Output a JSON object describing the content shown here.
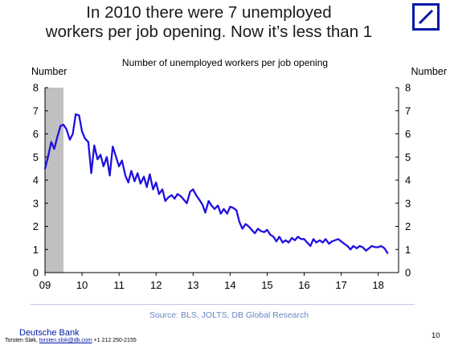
{
  "title_line1": "In 2010 there were 7 unemployed",
  "title_line2": "workers per job opening. Now it’s less than 1",
  "logo": {
    "icon": "deutsche-bank-logo-icon",
    "color": "#0018a8"
  },
  "footer": {
    "source": "Source: BLS, JOLTS, DB Global Research",
    "brand": "Deutsche Bank",
    "contact_name": "Torsten Sløk, ",
    "contact_email": "torsten.slok@db.com",
    "contact_phone": " +1 212 250-2155",
    "page_number": "10"
  },
  "chart_data": {
    "type": "line",
    "title": "Number of unemployed workers per job opening",
    "ylabel_left": "Number",
    "ylabel_right": "Number",
    "ylim": [
      0,
      8
    ],
    "yticks": [
      "0",
      "1",
      "2",
      "3",
      "4",
      "5",
      "6",
      "7",
      "8"
    ],
    "xlim": [
      2009.0,
      2018.55
    ],
    "xticks": [
      {
        "value": 2009,
        "label": "09"
      },
      {
        "value": 2010,
        "label": "10"
      },
      {
        "value": 2011,
        "label": "11"
      },
      {
        "value": 2012,
        "label": "12"
      },
      {
        "value": 2013,
        "label": "13"
      },
      {
        "value": 2014,
        "label": "14"
      },
      {
        "value": 2015,
        "label": "15"
      },
      {
        "value": 2016,
        "label": "16"
      },
      {
        "value": 2017,
        "label": "17"
      },
      {
        "value": 2018,
        "label": "18"
      }
    ],
    "recession_shading": {
      "start": 2009.0,
      "end": 2009.5,
      "color": "#c0c0c0"
    },
    "series": [
      {
        "color": "#1f10e0",
        "points": [
          [
            2009.0,
            4.5
          ],
          [
            2009.08,
            5.0
          ],
          [
            2009.17,
            5.65
          ],
          [
            2009.25,
            5.35
          ],
          [
            2009.33,
            5.85
          ],
          [
            2009.42,
            6.35
          ],
          [
            2009.5,
            6.4
          ],
          [
            2009.58,
            6.2
          ],
          [
            2009.67,
            5.75
          ],
          [
            2009.75,
            6.0
          ],
          [
            2009.83,
            6.85
          ],
          [
            2009.92,
            6.8
          ],
          [
            2010.0,
            6.1
          ],
          [
            2010.08,
            5.8
          ],
          [
            2010.17,
            5.65
          ],
          [
            2010.25,
            4.3
          ],
          [
            2010.33,
            5.5
          ],
          [
            2010.42,
            4.9
          ],
          [
            2010.5,
            5.1
          ],
          [
            2010.58,
            4.6
          ],
          [
            2010.67,
            5.0
          ],
          [
            2010.75,
            4.2
          ],
          [
            2010.83,
            5.45
          ],
          [
            2010.92,
            5.0
          ],
          [
            2011.0,
            4.6
          ],
          [
            2011.08,
            4.85
          ],
          [
            2011.17,
            4.2
          ],
          [
            2011.25,
            3.9
          ],
          [
            2011.33,
            4.4
          ],
          [
            2011.42,
            3.95
          ],
          [
            2011.5,
            4.3
          ],
          [
            2011.58,
            3.85
          ],
          [
            2011.67,
            4.15
          ],
          [
            2011.75,
            3.7
          ],
          [
            2011.83,
            4.25
          ],
          [
            2011.92,
            3.6
          ],
          [
            2012.0,
            3.9
          ],
          [
            2012.08,
            3.4
          ],
          [
            2012.17,
            3.6
          ],
          [
            2012.25,
            3.1
          ],
          [
            2012.33,
            3.25
          ],
          [
            2012.42,
            3.35
          ],
          [
            2012.5,
            3.2
          ],
          [
            2012.58,
            3.4
          ],
          [
            2012.67,
            3.3
          ],
          [
            2012.75,
            3.15
          ],
          [
            2012.83,
            3.0
          ],
          [
            2012.92,
            3.5
          ],
          [
            2013.0,
            3.6
          ],
          [
            2013.08,
            3.35
          ],
          [
            2013.17,
            3.15
          ],
          [
            2013.25,
            2.95
          ],
          [
            2013.33,
            2.6
          ],
          [
            2013.42,
            3.1
          ],
          [
            2013.5,
            2.9
          ],
          [
            2013.58,
            2.75
          ],
          [
            2013.67,
            2.9
          ],
          [
            2013.75,
            2.55
          ],
          [
            2013.83,
            2.75
          ],
          [
            2013.92,
            2.55
          ],
          [
            2014.0,
            2.85
          ],
          [
            2014.08,
            2.8
          ],
          [
            2014.17,
            2.7
          ],
          [
            2014.25,
            2.2
          ],
          [
            2014.33,
            1.9
          ],
          [
            2014.42,
            2.1
          ],
          [
            2014.5,
            2.0
          ],
          [
            2014.58,
            1.85
          ],
          [
            2014.67,
            1.7
          ],
          [
            2014.75,
            1.9
          ],
          [
            2014.83,
            1.8
          ],
          [
            2014.92,
            1.75
          ],
          [
            2015.0,
            1.85
          ],
          [
            2015.08,
            1.65
          ],
          [
            2015.17,
            1.55
          ],
          [
            2015.25,
            1.35
          ],
          [
            2015.33,
            1.55
          ],
          [
            2015.42,
            1.3
          ],
          [
            2015.5,
            1.4
          ],
          [
            2015.58,
            1.3
          ],
          [
            2015.67,
            1.5
          ],
          [
            2015.75,
            1.4
          ],
          [
            2015.83,
            1.55
          ],
          [
            2015.92,
            1.45
          ],
          [
            2016.0,
            1.45
          ],
          [
            2016.08,
            1.3
          ],
          [
            2016.17,
            1.15
          ],
          [
            2016.25,
            1.45
          ],
          [
            2016.33,
            1.3
          ],
          [
            2016.42,
            1.4
          ],
          [
            2016.5,
            1.3
          ],
          [
            2016.58,
            1.45
          ],
          [
            2016.67,
            1.25
          ],
          [
            2016.75,
            1.35
          ],
          [
            2016.83,
            1.4
          ],
          [
            2016.92,
            1.45
          ],
          [
            2017.0,
            1.35
          ],
          [
            2017.08,
            1.25
          ],
          [
            2017.17,
            1.15
          ],
          [
            2017.25,
            1.0
          ],
          [
            2017.33,
            1.15
          ],
          [
            2017.42,
            1.05
          ],
          [
            2017.5,
            1.15
          ],
          [
            2017.58,
            1.1
          ],
          [
            2017.67,
            0.95
          ],
          [
            2017.75,
            1.05
          ],
          [
            2017.83,
            1.15
          ],
          [
            2017.92,
            1.1
          ],
          [
            2018.0,
            1.1
          ],
          [
            2018.08,
            1.15
          ],
          [
            2018.17,
            1.05
          ],
          [
            2018.25,
            0.85
          ]
        ]
      }
    ],
    "grid": false,
    "legend": "none"
  }
}
